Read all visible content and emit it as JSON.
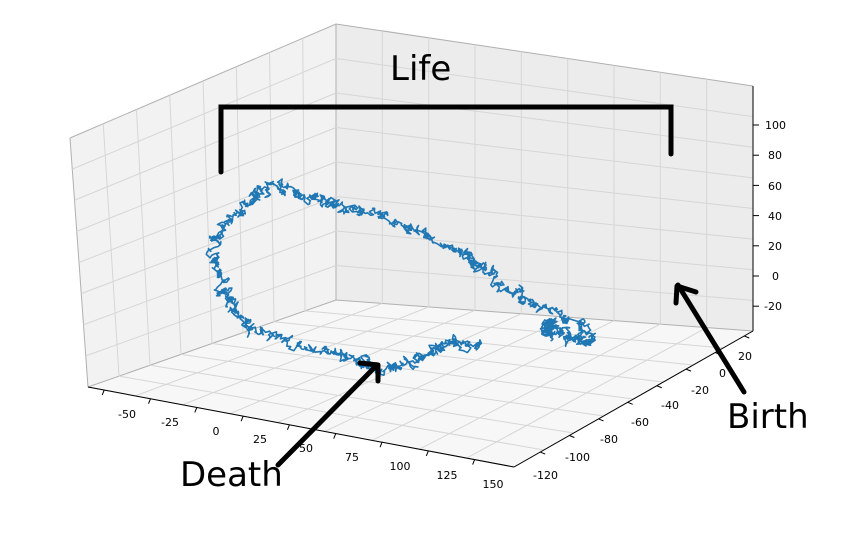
{
  "chart_data": {
    "type": "line",
    "projection": "3d",
    "title": "",
    "series": [
      {
        "color": "#1f77b4",
        "note": "3D random walk path",
        "x": [
          118,
          116,
          112,
          110,
          108,
          106,
          105,
          108,
          110,
          112,
          114,
          116,
          118,
          115,
          112,
          108,
          104,
          100,
          96,
          92,
          88,
          85,
          82,
          80,
          78,
          75,
          70,
          62,
          55,
          48,
          42,
          36,
          30,
          26,
          22,
          18,
          14,
          10,
          6,
          2,
          -2,
          -5,
          -8,
          -12,
          -15,
          -18,
          -20,
          -16,
          -12,
          -10,
          -8,
          -4,
          0,
          4,
          10,
          16,
          22,
          28,
          34,
          38,
          42,
          46,
          48,
          50,
          52,
          54,
          56,
          58,
          60,
          62,
          64,
          66,
          68,
          70
        ],
        "y": [
          -60,
          -58,
          -55,
          -52,
          -50,
          -48,
          -45,
          -42,
          -40,
          -38,
          -36,
          -35,
          -34,
          -36,
          -38,
          -42,
          -46,
          -50,
          -53,
          -56,
          -58,
          -60,
          -62,
          -64,
          -66,
          -68,
          -70,
          -72,
          -74,
          -76,
          -78,
          -80,
          -82,
          -84,
          -86,
          -88,
          -90,
          -92,
          -94,
          -96,
          -97,
          -98,
          -99,
          -100,
          -102,
          -104,
          -106,
          -108,
          -110,
          -112,
          -114,
          -116,
          -118,
          -119,
          -120,
          -118,
          -116,
          -112,
          -108,
          -104,
          -100,
          -96,
          -92,
          -88,
          -84,
          -80,
          -76,
          -72,
          -68,
          -64,
          -60,
          -56,
          -52,
          -48
        ],
        "z": [
          -2,
          0,
          3,
          1,
          -3,
          -6,
          -4,
          -8,
          -12,
          -15,
          -18,
          -20,
          -16,
          -10,
          -5,
          0,
          6,
          12,
          18,
          24,
          30,
          36,
          40,
          44,
          48,
          52,
          56,
          60,
          64,
          68,
          72,
          76,
          78,
          80,
          82,
          84,
          86,
          88,
          90,
          92,
          90,
          86,
          80,
          74,
          68,
          60,
          52,
          46,
          40,
          34,
          30,
          26,
          22,
          18,
          14,
          10,
          6,
          2,
          -2,
          -6,
          -10,
          -14,
          -18,
          -20,
          -22,
          -24,
          -22,
          -20,
          -18,
          -16,
          -14,
          -16,
          -18,
          -20
        ]
      }
    ],
    "xticks": [
      "-50",
      "-25",
      "0",
      "25",
      "50",
      "75",
      "100",
      "125",
      "150"
    ],
    "yticks": [
      "20",
      "0",
      "-20",
      "-40",
      "-60",
      "-80",
      "-100",
      "-120"
    ],
    "zticks": [
      "100",
      "80",
      "60",
      "40",
      "20",
      "0",
      "-20"
    ],
    "grid": true,
    "annotations": [
      {
        "key": "life",
        "text": "Life"
      },
      {
        "key": "birth",
        "text": "Birth"
      },
      {
        "key": "death",
        "text": "Death"
      }
    ]
  }
}
